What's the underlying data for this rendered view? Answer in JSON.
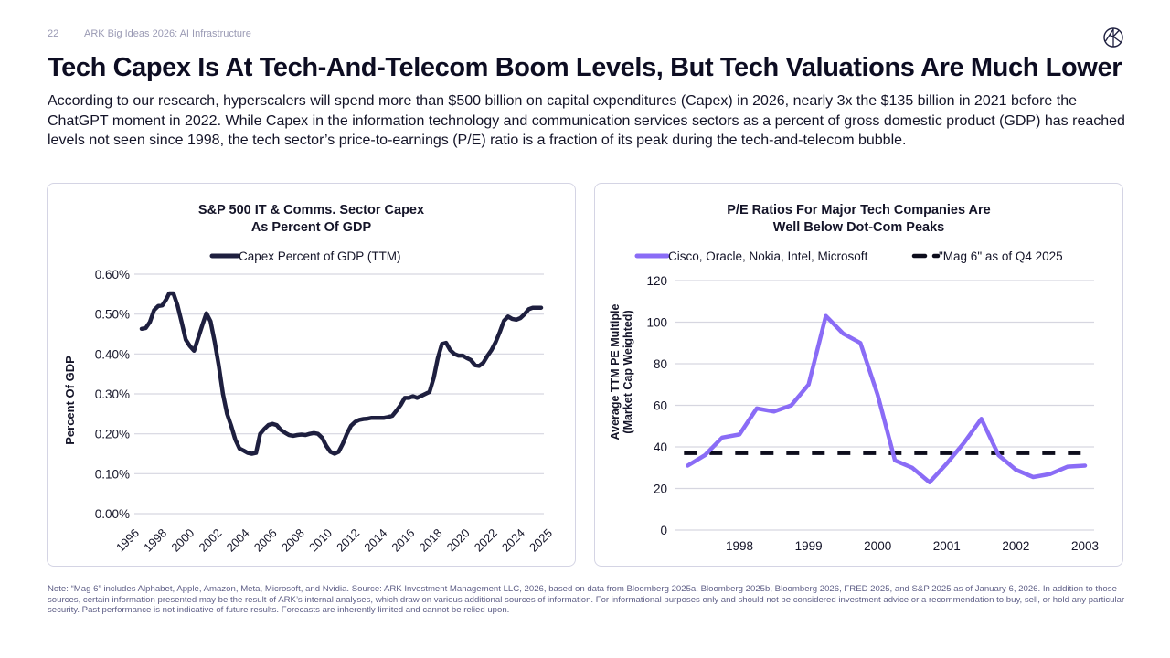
{
  "header": {
    "page_number": "22",
    "deck_title": "ARK Big Ideas 2026: AI Infrastructure",
    "logo": "ark-logo-icon"
  },
  "title": "Tech Capex Is At Tech-And-Telecom Boom Levels, But Tech Valuations Are Much Lower",
  "lede": "According to our research, hyperscalers will spend more than $500 billion on capital expenditures (Capex) in 2026, nearly 3x the $135 billion in 2021 before the ChatGPT moment in 2022. While Capex in the information technology and communication services sectors as a percent of gross domestic product (GDP) has reached levels not seen since 1998, the tech sector’s price-to-earnings (P/E) ratio is a fraction of its peak during the tech-and-telecom bubble.",
  "footnote": "Note: “Mag 6” includes Alphabet, Apple, Amazon, Meta, Microsoft, and Nvidia. Source: ARK Investment Management LLC, 2026, based on data from Bloomberg 2025a, Bloomberg 2025b, Bloomberg 2026, FRED 2025, and S&P 2025 as of January 6, 2026. In addition to those sources, certain information presented may be the result of ARK’s internal analyses, which draw on various additional sources of information. For informational purposes only and should not be considered investment advice or a recommendation to buy, sell, or hold any particular security. Past performance is not indicative of future results. Forecasts are inherently limited and cannot be relied upon.",
  "colors": {
    "navy": "#1e1f3f",
    "purple": "#8a6cf6",
    "dash": "#0d0d1c",
    "grid": "#d6d6e0",
    "panel_border": "#d4d4e4"
  },
  "chart_data": [
    {
      "type": "line",
      "title_line1": "S&P 500 IT & Comms. Sector Capex",
      "title_line2": "As Percent Of GDP",
      "xlabel": "",
      "ylabel": "Percent Of GDP",
      "legend": "top-center",
      "grid": true,
      "ylim": [
        0,
        0.6
      ],
      "yticks": [
        0.6,
        0.5,
        0.4,
        0.3,
        0.2,
        0.1,
        0.0
      ],
      "ytick_labels": [
        "0.60%",
        "0.50%",
        "0.40%",
        "0.30%",
        "0.20%",
        "0.10%",
        "0.00%"
      ],
      "xtick_labels": [
        "1996",
        "1998",
        "2000",
        "2002",
        "2004",
        "2006",
        "2008",
        "2010",
        "2012",
        "2014",
        "2016",
        "2018",
        "2020",
        "2022",
        "2024",
        "2025"
      ],
      "series": [
        {
          "name": "Capex Percent of GDP (TTM)",
          "color": "#1e1f3f",
          "x": [
            1996.0,
            1996.3,
            1996.6,
            1996.9,
            1997.2,
            1997.5,
            1997.8,
            1998.0,
            1998.3,
            1998.6,
            1998.9,
            1999.2,
            1999.5,
            1999.8,
            2000.1,
            2000.4,
            2000.7,
            2001.0,
            2001.3,
            2001.6,
            2001.9,
            2002.2,
            2002.5,
            2002.8,
            2003.1,
            2003.4,
            2003.7,
            2004.0,
            2004.3,
            2004.6,
            2004.9,
            2005.2,
            2005.5,
            2005.8,
            2006.1,
            2006.4,
            2006.7,
            2007.0,
            2007.3,
            2007.6,
            2007.9,
            2008.2,
            2008.5,
            2008.8,
            2009.1,
            2009.4,
            2009.7,
            2010.0,
            2010.3,
            2010.6,
            2010.9,
            2011.2,
            2011.5,
            2011.8,
            2012.1,
            2012.4,
            2012.7,
            2013.0,
            2013.3,
            2013.6,
            2013.9,
            2014.2,
            2014.5,
            2014.8,
            2015.1,
            2015.4,
            2015.7,
            2016.0,
            2016.3,
            2016.6,
            2016.9,
            2017.2,
            2017.5,
            2017.8,
            2018.1,
            2018.4,
            2018.7,
            2019.0,
            2019.3,
            2019.6,
            2019.9,
            2020.2,
            2020.5,
            2020.8,
            2021.1,
            2021.4,
            2021.7,
            2022.0,
            2022.3,
            2022.6,
            2022.9,
            2023.2,
            2023.5,
            2023.8,
            2024.1,
            2024.4,
            2024.7,
            2025.0
          ],
          "values": [
            0.463,
            0.465,
            0.48,
            0.51,
            0.52,
            0.522,
            0.538,
            0.552,
            0.552,
            0.522,
            0.48,
            0.436,
            0.42,
            0.408,
            0.44,
            0.472,
            0.502,
            0.482,
            0.43,
            0.37,
            0.3,
            0.25,
            0.22,
            0.185,
            0.163,
            0.158,
            0.152,
            0.15,
            0.152,
            0.2,
            0.212,
            0.222,
            0.225,
            0.222,
            0.21,
            0.203,
            0.197,
            0.195,
            0.197,
            0.198,
            0.197,
            0.2,
            0.202,
            0.2,
            0.19,
            0.17,
            0.155,
            0.15,
            0.155,
            0.175,
            0.2,
            0.22,
            0.23,
            0.235,
            0.237,
            0.238,
            0.24,
            0.24,
            0.24,
            0.24,
            0.242,
            0.245,
            0.258,
            0.272,
            0.29,
            0.29,
            0.294,
            0.29,
            0.295,
            0.3,
            0.305,
            0.34,
            0.39,
            0.425,
            0.428,
            0.41,
            0.4,
            0.396,
            0.396,
            0.39,
            0.385,
            0.372,
            0.37,
            0.378,
            0.395,
            0.41,
            0.43,
            0.455,
            0.483,
            0.494,
            0.488,
            0.486,
            0.49,
            0.5,
            0.512,
            0.516,
            0.516,
            0.516
          ]
        }
      ]
    },
    {
      "type": "line",
      "title_line1": "P/E Ratios For Major Tech Companies Are",
      "title_line2": "Well Below Dot-Com Peaks",
      "xlabel": "",
      "ylabel_line1": "Average TTM PE Multiple",
      "ylabel_line2": "(Market Cap Weighted)",
      "legend": "top-center",
      "grid": true,
      "ylim": [
        0,
        120
      ],
      "yticks": [
        120,
        100,
        80,
        60,
        40,
        20,
        0
      ],
      "ytick_labels": [
        "120",
        "100",
        "80",
        "60",
        "40",
        "20",
        "0"
      ],
      "xticks": [
        1998,
        1999,
        2000,
        2001,
        2002,
        2003
      ],
      "xtick_labels": [
        "1998",
        "1999",
        "2000",
        "2001",
        "2002",
        "2003"
      ],
      "xlim": [
        1996.75,
        2003.13
      ],
      "series": [
        {
          "name": "Cisco, Oracle, Nokia, Intel, Microsoft",
          "color": "#8a6cf6",
          "style": "solid",
          "x": [
            1997.25,
            1997.5,
            1997.75,
            1998.0,
            1998.25,
            1998.5,
            1998.75,
            1999.0,
            1999.25,
            1999.5,
            1999.75,
            2000.0,
            2000.25,
            2000.5,
            2000.75,
            2001.0,
            2001.25,
            2001.5,
            2001.75,
            2002.0,
            2002.25,
            2002.5,
            2002.75,
            2003.0
          ],
          "values": [
            31,
            36,
            44.5,
            46,
            58.5,
            57,
            60,
            70,
            103,
            94.5,
            90,
            65,
            33.5,
            30,
            23,
            32,
            42,
            53.5,
            36,
            29,
            25.5,
            27,
            30.5,
            31
          ]
        },
        {
          "name": "\"Mag 6\" as of Q4 2025",
          "color": "#0d0d1c",
          "style": "dashed",
          "x": [
            1997.25,
            2003.0
          ],
          "values": [
            37,
            37
          ]
        }
      ]
    }
  ]
}
